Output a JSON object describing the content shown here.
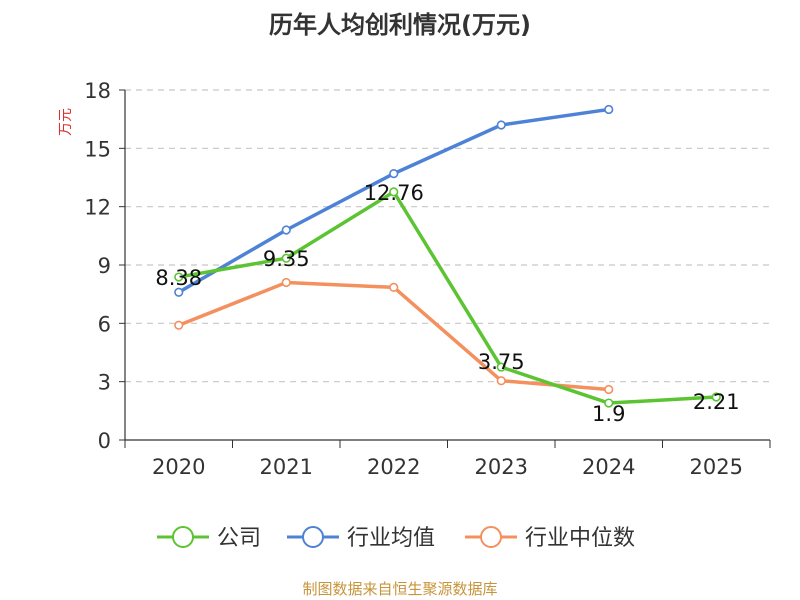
{
  "chart_data": {
    "type": "line",
    "title": "历年人均创利情况(万元)",
    "ylabel": "万元",
    "xlabel": "",
    "categories": [
      "2020",
      "2021",
      "2022",
      "2023",
      "2024",
      "2025"
    ],
    "ylim": [
      0,
      18
    ],
    "yticks": [
      0,
      3,
      6,
      9,
      12,
      15,
      18
    ],
    "grid": true,
    "legend_position": "bottom",
    "series": [
      {
        "name": "公司",
        "color": "#5cc433",
        "values": [
          8.38,
          9.35,
          12.76,
          3.75,
          1.9,
          2.21
        ],
        "labels": [
          "8.38",
          "9.35",
          "12.76",
          "3.75",
          "1.9",
          "2.21"
        ]
      },
      {
        "name": "行业均值",
        "color": "#4e82d6",
        "values": [
          7.6,
          10.8,
          13.7,
          16.2,
          17.0,
          null
        ]
      },
      {
        "name": "行业中位数",
        "color": "#f4905e",
        "values": [
          5.9,
          8.1,
          7.85,
          3.05,
          2.6,
          null
        ]
      }
    ]
  },
  "source": "制图数据来自恒生聚源数据库"
}
